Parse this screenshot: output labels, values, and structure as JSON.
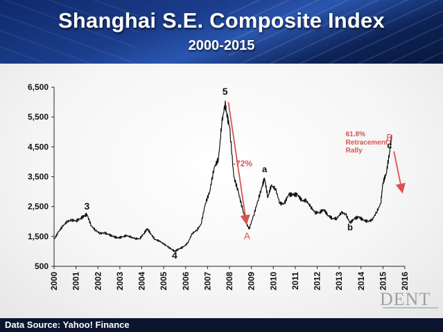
{
  "header": {
    "title": "Shanghai S.E. Composite Index",
    "subtitle": "2000-2015"
  },
  "footer": {
    "source": "Data Source: Yahoo! Finance",
    "logo": "DENT"
  },
  "colors": {
    "line": "#111111",
    "annotation_red": "#d9534f",
    "header_blue": "#1b3d8c"
  },
  "chart_data": {
    "type": "line",
    "title": "Shanghai S.E. Composite Index",
    "subtitle": "2000-2015",
    "xlabel": "",
    "ylabel": "",
    "xlim": [
      2000,
      2016
    ],
    "ylim": [
      500,
      6500
    ],
    "x_ticks": [
      "2000",
      "2001",
      "2002",
      "2003",
      "2004",
      "2005",
      "2006",
      "2007",
      "2008",
      "2009",
      "2010",
      "2011",
      "2012",
      "2013",
      "2014",
      "2015",
      "2016"
    ],
    "y_ticks": [
      "500",
      "1,500",
      "2,500",
      "3,500",
      "4,500",
      "5,500",
      "6,500"
    ],
    "grid": false,
    "series": [
      {
        "name": "",
        "x": [
          2000.0,
          2000.2,
          2000.4,
          2000.6,
          2000.8,
          2001.0,
          2001.2,
          2001.4,
          2001.5,
          2001.7,
          2001.9,
          2002.1,
          2002.3,
          2002.5,
          2002.7,
          2002.9,
          2003.1,
          2003.3,
          2003.5,
          2003.7,
          2003.9,
          2004.1,
          2004.25,
          2004.4,
          2004.6,
          2004.8,
          2005.0,
          2005.2,
          2005.4,
          2005.5,
          2005.7,
          2005.9,
          2006.1,
          2006.3,
          2006.5,
          2006.7,
          2006.9,
          2007.1,
          2007.3,
          2007.5,
          2007.65,
          2007.8,
          2007.9,
          2008.0,
          2008.2,
          2008.4,
          2008.6,
          2008.8,
          2008.9,
          2009.1,
          2009.3,
          2009.5,
          2009.6,
          2009.75,
          2009.9,
          2010.1,
          2010.3,
          2010.5,
          2010.7,
          2010.9,
          2011.1,
          2011.3,
          2011.5,
          2011.7,
          2011.9,
          2012.1,
          2012.3,
          2012.5,
          2012.7,
          2012.9,
          2013.1,
          2013.3,
          2013.5,
          2013.7,
          2013.9,
          2014.1,
          2014.3,
          2014.5,
          2014.7,
          2014.9,
          2015.0,
          2015.15,
          2015.3,
          2015.4
        ],
        "values": [
          1400,
          1650,
          1850,
          2000,
          2050,
          2020,
          2100,
          2200,
          2240,
          1850,
          1700,
          1600,
          1620,
          1560,
          1500,
          1450,
          1480,
          1530,
          1480,
          1430,
          1420,
          1600,
          1760,
          1600,
          1400,
          1350,
          1250,
          1150,
          1050,
          1000,
          1080,
          1150,
          1280,
          1600,
          1700,
          1900,
          2600,
          3000,
          3800,
          4100,
          5300,
          5950,
          5500,
          5200,
          3500,
          3000,
          2400,
          1900,
          1750,
          2200,
          2700,
          3200,
          3450,
          2800,
          3200,
          3100,
          2600,
          2600,
          2900,
          2900,
          2900,
          2700,
          2700,
          2500,
          2300,
          2300,
          2400,
          2200,
          2100,
          2100,
          2300,
          2250,
          1950,
          2100,
          2150,
          2050,
          2000,
          2050,
          2300,
          2600,
          3300,
          3600,
          4300,
          4900
        ]
      }
    ],
    "annotations": [
      {
        "text": "5",
        "x": 2007.8,
        "y": 6250
      },
      {
        "text": "3",
        "x": 2001.5,
        "y": 2400
      },
      {
        "text": "4",
        "x": 2005.5,
        "y": 750
      },
      {
        "text": "a",
        "x": 2009.6,
        "y": 3650
      },
      {
        "text": "b",
        "x": 2013.5,
        "y": 1700
      },
      {
        "text": "c",
        "x": 2015.3,
        "y": 4450
      },
      {
        "text": "A",
        "x": 2008.8,
        "y": 1400
      },
      {
        "text": "B",
        "x": 2015.3,
        "y": 4700
      },
      {
        "text": "-72%",
        "x": 2008.6,
        "y": 3850
      },
      {
        "text": "61.8%",
        "x": 2013.3,
        "y": 4850
      },
      {
        "text": "Retracement",
        "x": 2013.3,
        "y": 4580
      },
      {
        "text": "Rally",
        "x": 2013.3,
        "y": 4310
      }
    ]
  }
}
